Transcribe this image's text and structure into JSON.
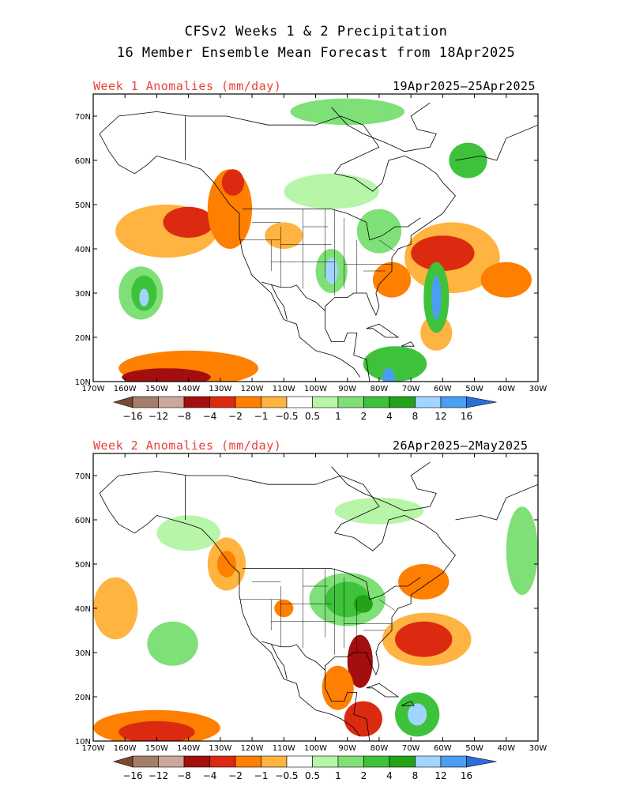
{
  "titles": {
    "line1": "CFSv2 Weeks 1 & 2 Precipitation",
    "line2": "16 Member Ensemble Mean Forecast from 18Apr2025"
  },
  "chart_data": [
    {
      "type": "heatmap",
      "title": "Week 1 Anomalies (mm/day)",
      "period": "19Apr2025–25Apr2025",
      "xlim": [
        -170,
        -30
      ],
      "ylim": [
        10,
        75
      ],
      "x_tick_labels": [
        "170W",
        "160W",
        "150W",
        "140W",
        "130W",
        "120W",
        "110W",
        "100W",
        "90W",
        "80W",
        "70W",
        "60W",
        "50W",
        "40W",
        "30W"
      ],
      "y_tick_labels": [
        "10N",
        "20N",
        "30N",
        "40N",
        "50N",
        "60N",
        "70N"
      ],
      "anomaly_regions": [
        {
          "lon": -147,
          "lat": 44,
          "rx": 16,
          "ry": 6,
          "value": -1
        },
        {
          "lon": -140,
          "lat": 46,
          "rx": 8,
          "ry": 3.5,
          "value": -4
        },
        {
          "lon": -127,
          "lat": 49,
          "rx": 7,
          "ry": 9,
          "value": -2
        },
        {
          "lon": -126,
          "lat": 55,
          "rx": 3.5,
          "ry": 3,
          "value": -4
        },
        {
          "lon": -110,
          "lat": 43,
          "rx": 6,
          "ry": 3,
          "value": -1
        },
        {
          "lon": -57,
          "lat": 38,
          "rx": 15,
          "ry": 8,
          "value": -1
        },
        {
          "lon": -60,
          "lat": 39,
          "rx": 10,
          "ry": 4,
          "value": -4
        },
        {
          "lon": -76,
          "lat": 33,
          "rx": 6,
          "ry": 4,
          "value": -2
        },
        {
          "lon": -140,
          "lat": 13,
          "rx": 22,
          "ry": 4,
          "value": -2
        },
        {
          "lon": -147,
          "lat": 11,
          "rx": 14,
          "ry": 2,
          "value": -8
        },
        {
          "lon": -40,
          "lat": 33,
          "rx": 8,
          "ry": 4,
          "value": -2
        },
        {
          "lon": -62,
          "lat": 21,
          "rx": 5,
          "ry": 4,
          "value": -1
        },
        {
          "lon": -155,
          "lat": 30,
          "rx": 7,
          "ry": 6,
          "value": 1
        },
        {
          "lon": -154,
          "lat": 30,
          "rx": 4,
          "ry": 4,
          "value": 2
        },
        {
          "lon": -154,
          "lat": 29,
          "rx": 1.5,
          "ry": 2,
          "value": 8
        },
        {
          "lon": -95,
          "lat": 35,
          "rx": 5,
          "ry": 5,
          "value": 1
        },
        {
          "lon": -95,
          "lat": 35,
          "rx": 2,
          "ry": 3,
          "value": 8
        },
        {
          "lon": -80,
          "lat": 44,
          "rx": 7,
          "ry": 5,
          "value": 1
        },
        {
          "lon": -62,
          "lat": 29,
          "rx": 4,
          "ry": 8,
          "value": 2
        },
        {
          "lon": -62,
          "lat": 29,
          "rx": 1.5,
          "ry": 5,
          "value": 12
        },
        {
          "lon": -75,
          "lat": 14,
          "rx": 10,
          "ry": 4,
          "value": 2
        },
        {
          "lon": -90,
          "lat": 71,
          "rx": 18,
          "ry": 3,
          "value": 1
        },
        {
          "lon": -52,
          "lat": 60,
          "rx": 6,
          "ry": 4,
          "value": 2
        },
        {
          "lon": -95,
          "lat": 53,
          "rx": 15,
          "ry": 4,
          "value": 0.5
        },
        {
          "lon": -77,
          "lat": 11,
          "rx": 2,
          "ry": 2,
          "value": 12
        }
      ]
    },
    {
      "type": "heatmap",
      "title": "Week 2 Anomalies (mm/day)",
      "period": "26Apr2025–2May2025",
      "xlim": [
        -170,
        -30
      ],
      "ylim": [
        10,
        75
      ],
      "x_tick_labels": [
        "170W",
        "160W",
        "150W",
        "140W",
        "130W",
        "120W",
        "110W",
        "100W",
        "90W",
        "80W",
        "70W",
        "60W",
        "50W",
        "40W",
        "30W"
      ],
      "y_tick_labels": [
        "10N",
        "20N",
        "30N",
        "40N",
        "50N",
        "60N",
        "70N"
      ],
      "anomaly_regions": [
        {
          "lon": -150,
          "lat": 13,
          "rx": 20,
          "ry": 4,
          "value": -2
        },
        {
          "lon": -150,
          "lat": 12,
          "rx": 12,
          "ry": 2.5,
          "value": -4
        },
        {
          "lon": -128,
          "lat": 50,
          "rx": 6,
          "ry": 6,
          "value": -1
        },
        {
          "lon": -128,
          "lat": 50,
          "rx": 3,
          "ry": 3,
          "value": -2
        },
        {
          "lon": -65,
          "lat": 33,
          "rx": 14,
          "ry": 6,
          "value": -1
        },
        {
          "lon": -66,
          "lat": 33,
          "rx": 9,
          "ry": 4,
          "value": -4
        },
        {
          "lon": -66,
          "lat": 46,
          "rx": 8,
          "ry": 4,
          "value": -2
        },
        {
          "lon": -86,
          "lat": 28,
          "rx": 4,
          "ry": 6,
          "value": -8
        },
        {
          "lon": -93,
          "lat": 22,
          "rx": 5,
          "ry": 5,
          "value": -2
        },
        {
          "lon": -85,
          "lat": 15,
          "rx": 6,
          "ry": 4,
          "value": -4
        },
        {
          "lon": -163,
          "lat": 40,
          "rx": 7,
          "ry": 7,
          "value": -1
        },
        {
          "lon": -110,
          "lat": 40,
          "rx": 3,
          "ry": 2,
          "value": -2
        },
        {
          "lon": -90,
          "lat": 42,
          "rx": 12,
          "ry": 6,
          "value": 1
        },
        {
          "lon": -90,
          "lat": 42,
          "rx": 7,
          "ry": 4,
          "value": 2
        },
        {
          "lon": -85,
          "lat": 41,
          "rx": 3,
          "ry": 2,
          "value": 4
        },
        {
          "lon": -145,
          "lat": 32,
          "rx": 8,
          "ry": 5,
          "value": 1
        },
        {
          "lon": -140,
          "lat": 57,
          "rx": 10,
          "ry": 4,
          "value": 0.5
        },
        {
          "lon": -68,
          "lat": 16,
          "rx": 7,
          "ry": 5,
          "value": 2
        },
        {
          "lon": -68,
          "lat": 16,
          "rx": 3,
          "ry": 2.5,
          "value": 8
        },
        {
          "lon": -35,
          "lat": 53,
          "rx": 5,
          "ry": 10,
          "value": 1
        },
        {
          "lon": -80,
          "lat": 62,
          "rx": 14,
          "ry": 3,
          "value": 0.5
        }
      ]
    }
  ],
  "colorbar": {
    "labels": [
      "−16",
      "−12",
      "−8",
      "−4",
      "−2",
      "−1",
      "−0.5",
      "0.5",
      "1",
      "2",
      "4",
      "8",
      "12",
      "16"
    ],
    "colors": [
      "#7a4a2e",
      "#a57d6a",
      "#cba79c",
      "#a30f0f",
      "#dc2a10",
      "#ff7f00",
      "#ffb340",
      "#ffffff",
      "#b7f5a8",
      "#7fe077",
      "#3ec23c",
      "#22a318",
      "#a0d5ff",
      "#4b9ef3",
      "#2a6ed8"
    ]
  },
  "style": {
    "anomaly_bins": [
      -16,
      -12,
      -8,
      -4,
      -2,
      -1,
      -0.5,
      0.5,
      1,
      2,
      4,
      8,
      12,
      16
    ],
    "map_line_color": "#000000"
  }
}
